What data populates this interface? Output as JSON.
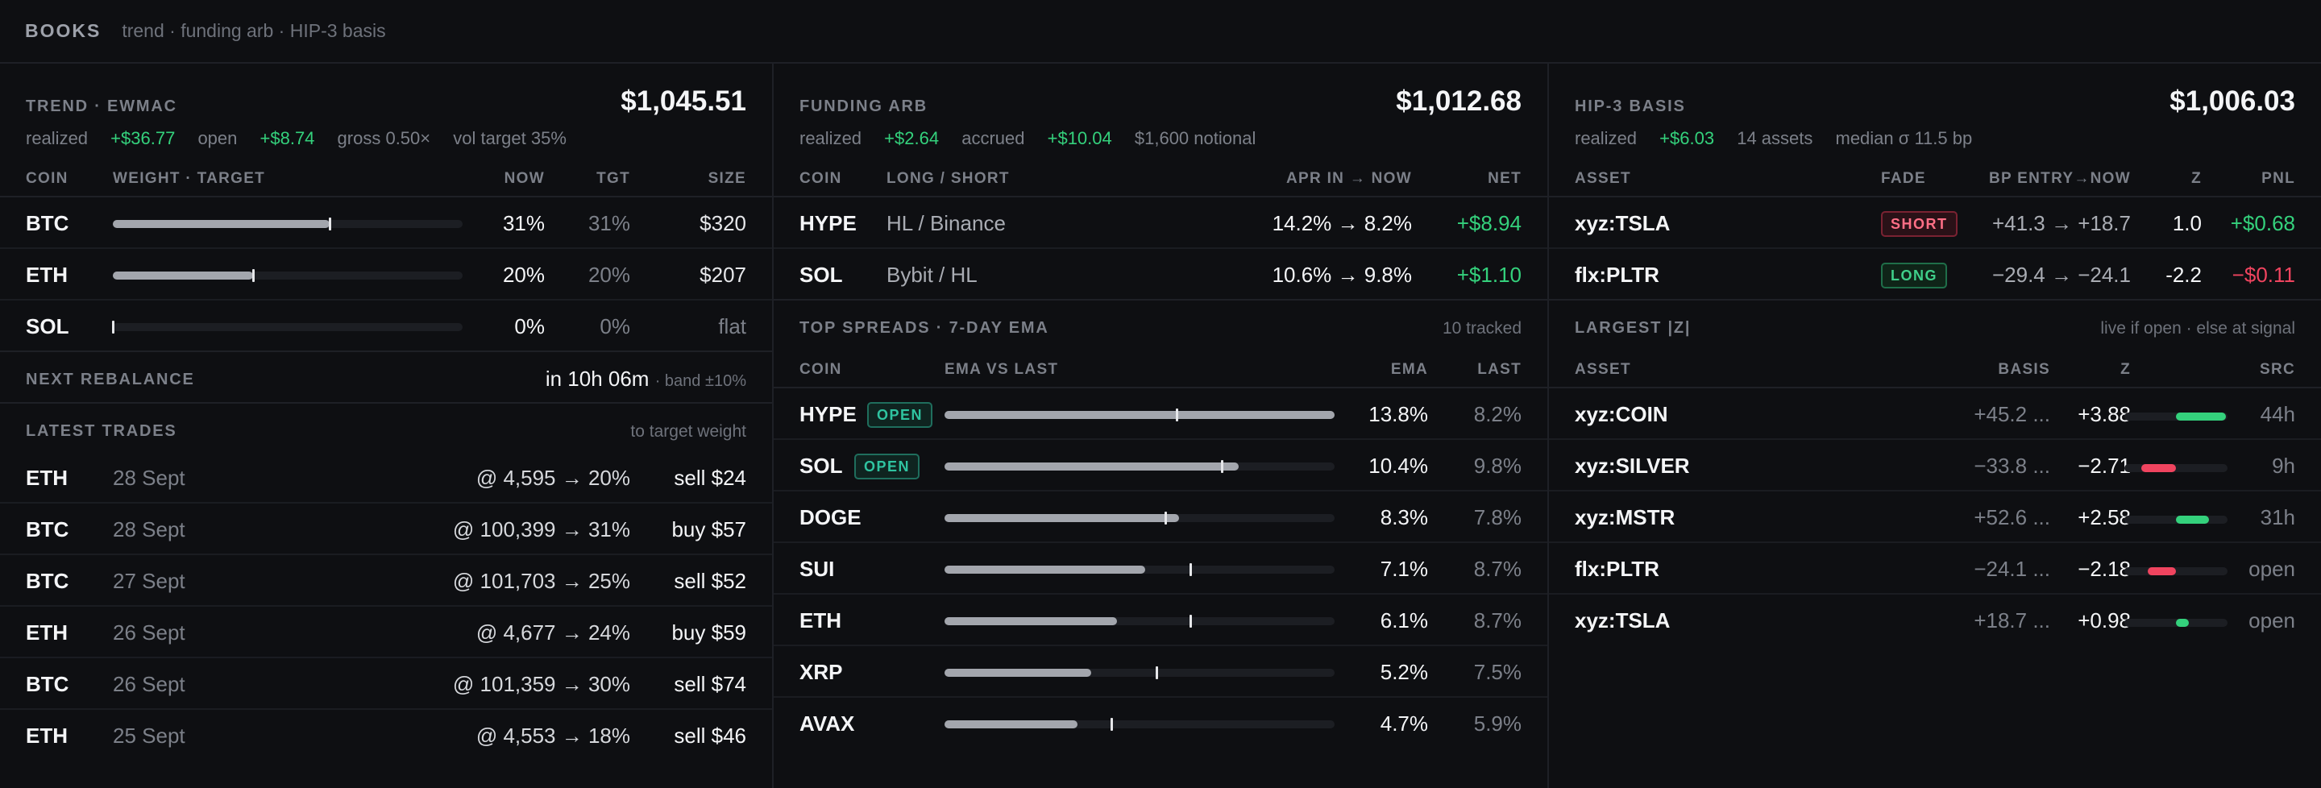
{
  "header": {
    "brand": "BOOKS",
    "subtitle": "trend · funding arb · HIP-3 basis"
  },
  "trend": {
    "title": "TREND · EWMAC",
    "total": "$1,045.51",
    "realized_label": "realized",
    "realized": "+$36.77",
    "open_label": "open",
    "open": "+$8.74",
    "gross": "gross 0.50×",
    "vol_target": "vol target 35%",
    "columns": {
      "coin": "COIN",
      "weight": "WEIGHT · TARGET",
      "now": "NOW",
      "tgt": "TGT",
      "size": "SIZE"
    },
    "rows": [
      {
        "coin": "BTC",
        "now": "31%",
        "tgt": "31%",
        "size": "$320",
        "weight": 0.31,
        "target": 0.31
      },
      {
        "coin": "ETH",
        "now": "20%",
        "tgt": "20%",
        "size": "$207",
        "weight": 0.2,
        "target": 0.2
      },
      {
        "coin": "SOL",
        "now": "0%",
        "tgt": "0%",
        "size": "flat",
        "weight": 0.0,
        "target": 0.0
      }
    ],
    "rebalance_label": "NEXT REBALANCE",
    "rebalance_value": "in 10h 06m",
    "rebalance_band": "· band ±10%",
    "trades_label": "LATEST TRADES",
    "trades_aside": "to target weight",
    "trades": [
      {
        "coin": "ETH",
        "date": "28 Sept",
        "detail": "@ 4,595 → 20%",
        "action": "sell $24"
      },
      {
        "coin": "BTC",
        "date": "28 Sept",
        "detail": "@ 100,399 → 31%",
        "action": "buy $57"
      },
      {
        "coin": "BTC",
        "date": "27 Sept",
        "detail": "@ 101,703 → 25%",
        "action": "sell $52"
      },
      {
        "coin": "ETH",
        "date": "26 Sept",
        "detail": "@ 4,677 → 24%",
        "action": "buy $59"
      },
      {
        "coin": "BTC",
        "date": "26 Sept",
        "detail": "@ 101,359 → 30%",
        "action": "sell $74"
      },
      {
        "coin": "ETH",
        "date": "25 Sept",
        "detail": "@ 4,553 → 18%",
        "action": "sell $46"
      }
    ]
  },
  "funding": {
    "title": "FUNDING ARB",
    "total": "$1,012.68",
    "realized_label": "realized",
    "realized": "+$2.64",
    "accrued_label": "accrued",
    "accrued": "+$10.04",
    "notional": "$1,600 notional",
    "columns": {
      "coin": "COIN",
      "ls": "LONG / SHORT",
      "apr": "APR IN → NOW",
      "net": "NET"
    },
    "rows": [
      {
        "coin": "HYPE",
        "ls": "HL / Binance",
        "apr": "14.2% → 8.2%",
        "net": "+$8.94"
      },
      {
        "coin": "SOL",
        "ls": "Bybit / HL",
        "apr": "10.6% → 9.8%",
        "net": "+$1.10"
      }
    ],
    "spreads_label": "TOP SPREADS · 7-DAY EMA",
    "spreads_aside": "10 tracked",
    "spreads_columns": {
      "coin": "COIN",
      "ema_vs_last": "EMA VS LAST",
      "ema": "EMA",
      "last": "LAST"
    },
    "spreads": [
      {
        "coin": "HYPE",
        "badge": "OPEN",
        "ema": "13.8%",
        "last": "8.2%",
        "ema_v": 13.8,
        "last_v": 8.2
      },
      {
        "coin": "SOL",
        "badge": "OPEN",
        "ema": "10.4%",
        "last": "9.8%",
        "ema_v": 10.4,
        "last_v": 9.8
      },
      {
        "coin": "DOGE",
        "badge": "",
        "ema": "8.3%",
        "last": "7.8%",
        "ema_v": 8.3,
        "last_v": 7.8
      },
      {
        "coin": "SUI",
        "badge": "",
        "ema": "7.1%",
        "last": "8.7%",
        "ema_v": 7.1,
        "last_v": 8.7
      },
      {
        "coin": "ETH",
        "badge": "",
        "ema": "6.1%",
        "last": "8.7%",
        "ema_v": 6.1,
        "last_v": 8.7
      },
      {
        "coin": "XRP",
        "badge": "",
        "ema": "5.2%",
        "last": "7.5%",
        "ema_v": 5.2,
        "last_v": 7.5
      },
      {
        "coin": "AVAX",
        "badge": "",
        "ema": "4.7%",
        "last": "5.9%",
        "ema_v": 4.7,
        "last_v": 5.9
      }
    ]
  },
  "basis": {
    "title": "HIP-3 BASIS",
    "total": "$1,006.03",
    "realized_label": "realized",
    "realized": "+$6.03",
    "assets": "14 assets",
    "median": "median σ 11.5 bp",
    "columns": {
      "asset": "ASSET",
      "fade": "FADE",
      "bp": "BP ENTRY→NOW",
      "z": "Z",
      "pnl": "PNL"
    },
    "rows": [
      {
        "asset": "xyz:TSLA",
        "fade": "SHORT",
        "bp": "+41.3 → +18.7",
        "z": "1.0",
        "pnl": "+$0.68",
        "pnl_sign": "pos"
      },
      {
        "asset": "flx:PLTR",
        "fade": "LONG",
        "bp": "−29.4 → −24.1",
        "z": "-2.2",
        "pnl": "−$0.11",
        "pnl_sign": "neg"
      }
    ],
    "largest_label": "LARGEST |Z|",
    "largest_aside": "live if open · else at signal",
    "largest_columns": {
      "asset": "ASSET",
      "basis": "BASIS",
      "z": "Z",
      "src": "SRC"
    },
    "largest": [
      {
        "asset": "xyz:COIN",
        "basis": "+45.2 ...",
        "z": "+3.88",
        "src": "44h",
        "z_v": 3.88
      },
      {
        "asset": "xyz:SILVER",
        "basis": "−33.8 ...",
        "z": "−2.71",
        "src": "9h",
        "z_v": -2.71
      },
      {
        "asset": "xyz:MSTR",
        "basis": "+52.6 ...",
        "z": "+2.58",
        "src": "31h",
        "z_v": 2.58
      },
      {
        "asset": "flx:PLTR",
        "basis": "−24.1 ...",
        "z": "−2.18",
        "src": "open",
        "z_v": -2.18
      },
      {
        "asset": "xyz:TSLA",
        "basis": "+18.7 ...",
        "z": "+0.98",
        "src": "open",
        "z_v": 0.98
      }
    ]
  },
  "colors": {
    "positive": "#34d17c",
    "negative": "#f0445f",
    "open_badge": "#2fc3a0",
    "background": "#0e0f12"
  }
}
